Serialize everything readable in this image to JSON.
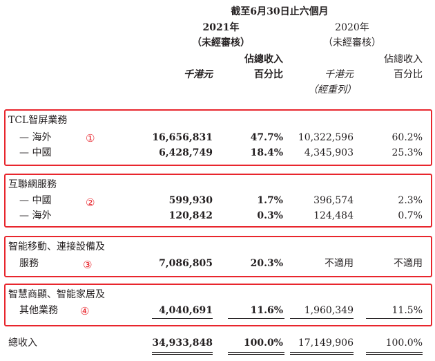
{
  "header": {
    "period": "截至6月30日止六個月",
    "year_2021": "2021年",
    "audit_2021": "（未經審核）",
    "year_2020": "2020年",
    "audit_2020": "（未經審核）",
    "pct_label_line1": "佔總收入",
    "pct_label_line2": "百分比",
    "unit": "千港元",
    "restated": "（經重列）"
  },
  "sections": [
    {
      "name": "TCL智屏業務",
      "marker": "①",
      "rows": [
        {
          "label": "— 海外",
          "v2021": "16,656,831",
          "p2021": "47.7%",
          "v2020": "10,322,596",
          "p2020": "60.2%"
        },
        {
          "label": "— 中國",
          "v2021": "6,428,749",
          "p2021": "18.4%",
          "v2020": "4,345,903",
          "p2020": "25.3%"
        }
      ]
    },
    {
      "name": "互聯網服務",
      "marker": "②",
      "rows": [
        {
          "label": "— 中國",
          "v2021": "599,930",
          "p2021": "1.7%",
          "v2020": "396,574",
          "p2020": "2.3%"
        },
        {
          "label": "— 海外",
          "v2021": "120,842",
          "p2021": "0.3%",
          "v2020": "124,484",
          "p2020": "0.7%"
        }
      ]
    },
    {
      "name_line1": "智能移動、連接設備及",
      "name_line2": "服務",
      "marker": "③",
      "v2021": "7,086,805",
      "p2021": "20.3%",
      "v2020": "不適用",
      "p2020": "不適用"
    },
    {
      "name_line1": "智慧商顯、智能家居及",
      "name_line2": "其他業務",
      "marker": "④",
      "v2021": "4,040,691",
      "p2021": "11.6%",
      "v2020": "1,960,349",
      "p2020": "11.5%"
    }
  ],
  "total": {
    "label": "總收入",
    "v2021": "34,933,848",
    "p2021": "100.0%",
    "v2020": "17,149,906",
    "p2020": "100.0%"
  },
  "colors": {
    "highlight": "#e8262d",
    "text": "#231f20"
  }
}
